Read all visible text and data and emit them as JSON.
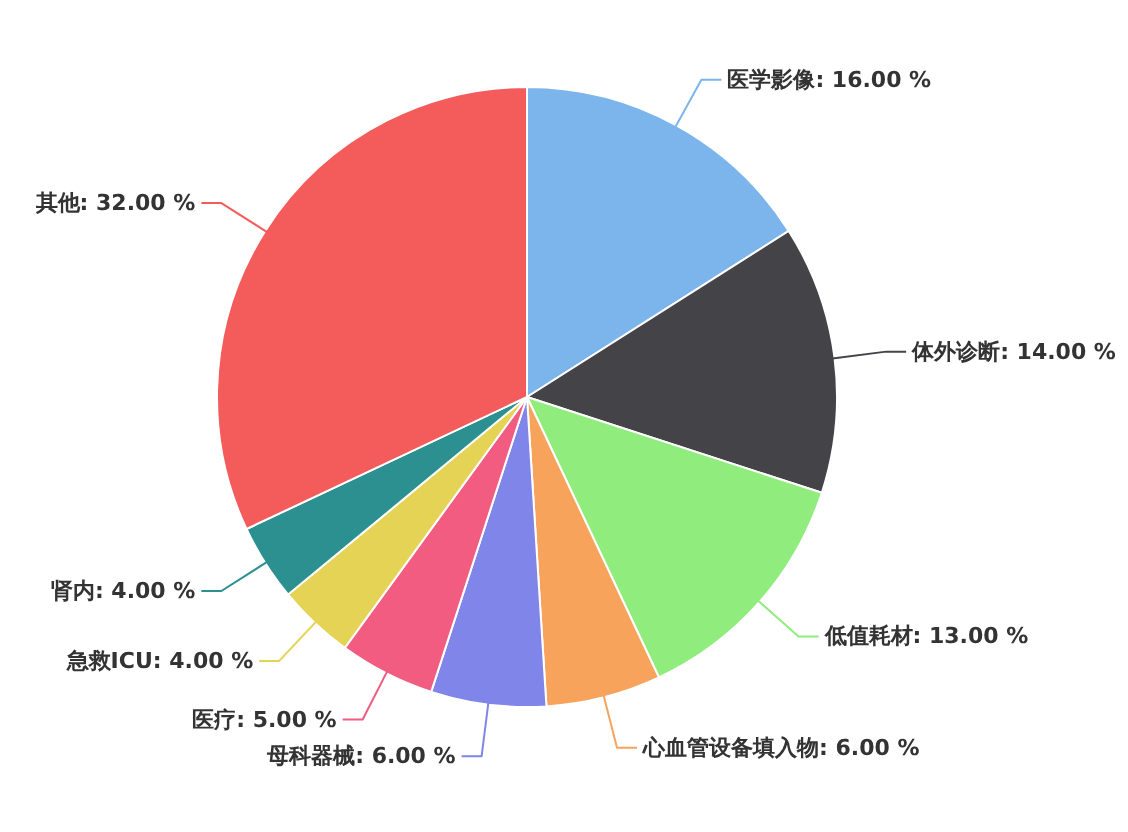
{
  "chart_data": {
    "type": "pie",
    "categories": [
      "医学影像",
      "体外诊断",
      "低值耗材",
      "心血管设备填入物",
      "母科器械",
      "医疗",
      "急救ICU",
      "肾内",
      "其他"
    ],
    "values": [
      16,
      14,
      13,
      6,
      6,
      5,
      4,
      4,
      32
    ],
    "colors": [
      "#7cb5ec",
      "#434348",
      "#90ed7d",
      "#f7a35c",
      "#8085e9",
      "#f15c80",
      "#e4d354",
      "#2b908f",
      "#f45b5b"
    ],
    "value_labels": [
      "16.00 %",
      "14.00 %",
      "13.00 %",
      "6.00 %",
      "6.00 %",
      "5.00 %",
      "4.00 %",
      "4.00 %",
      "32.00 %"
    ]
  }
}
